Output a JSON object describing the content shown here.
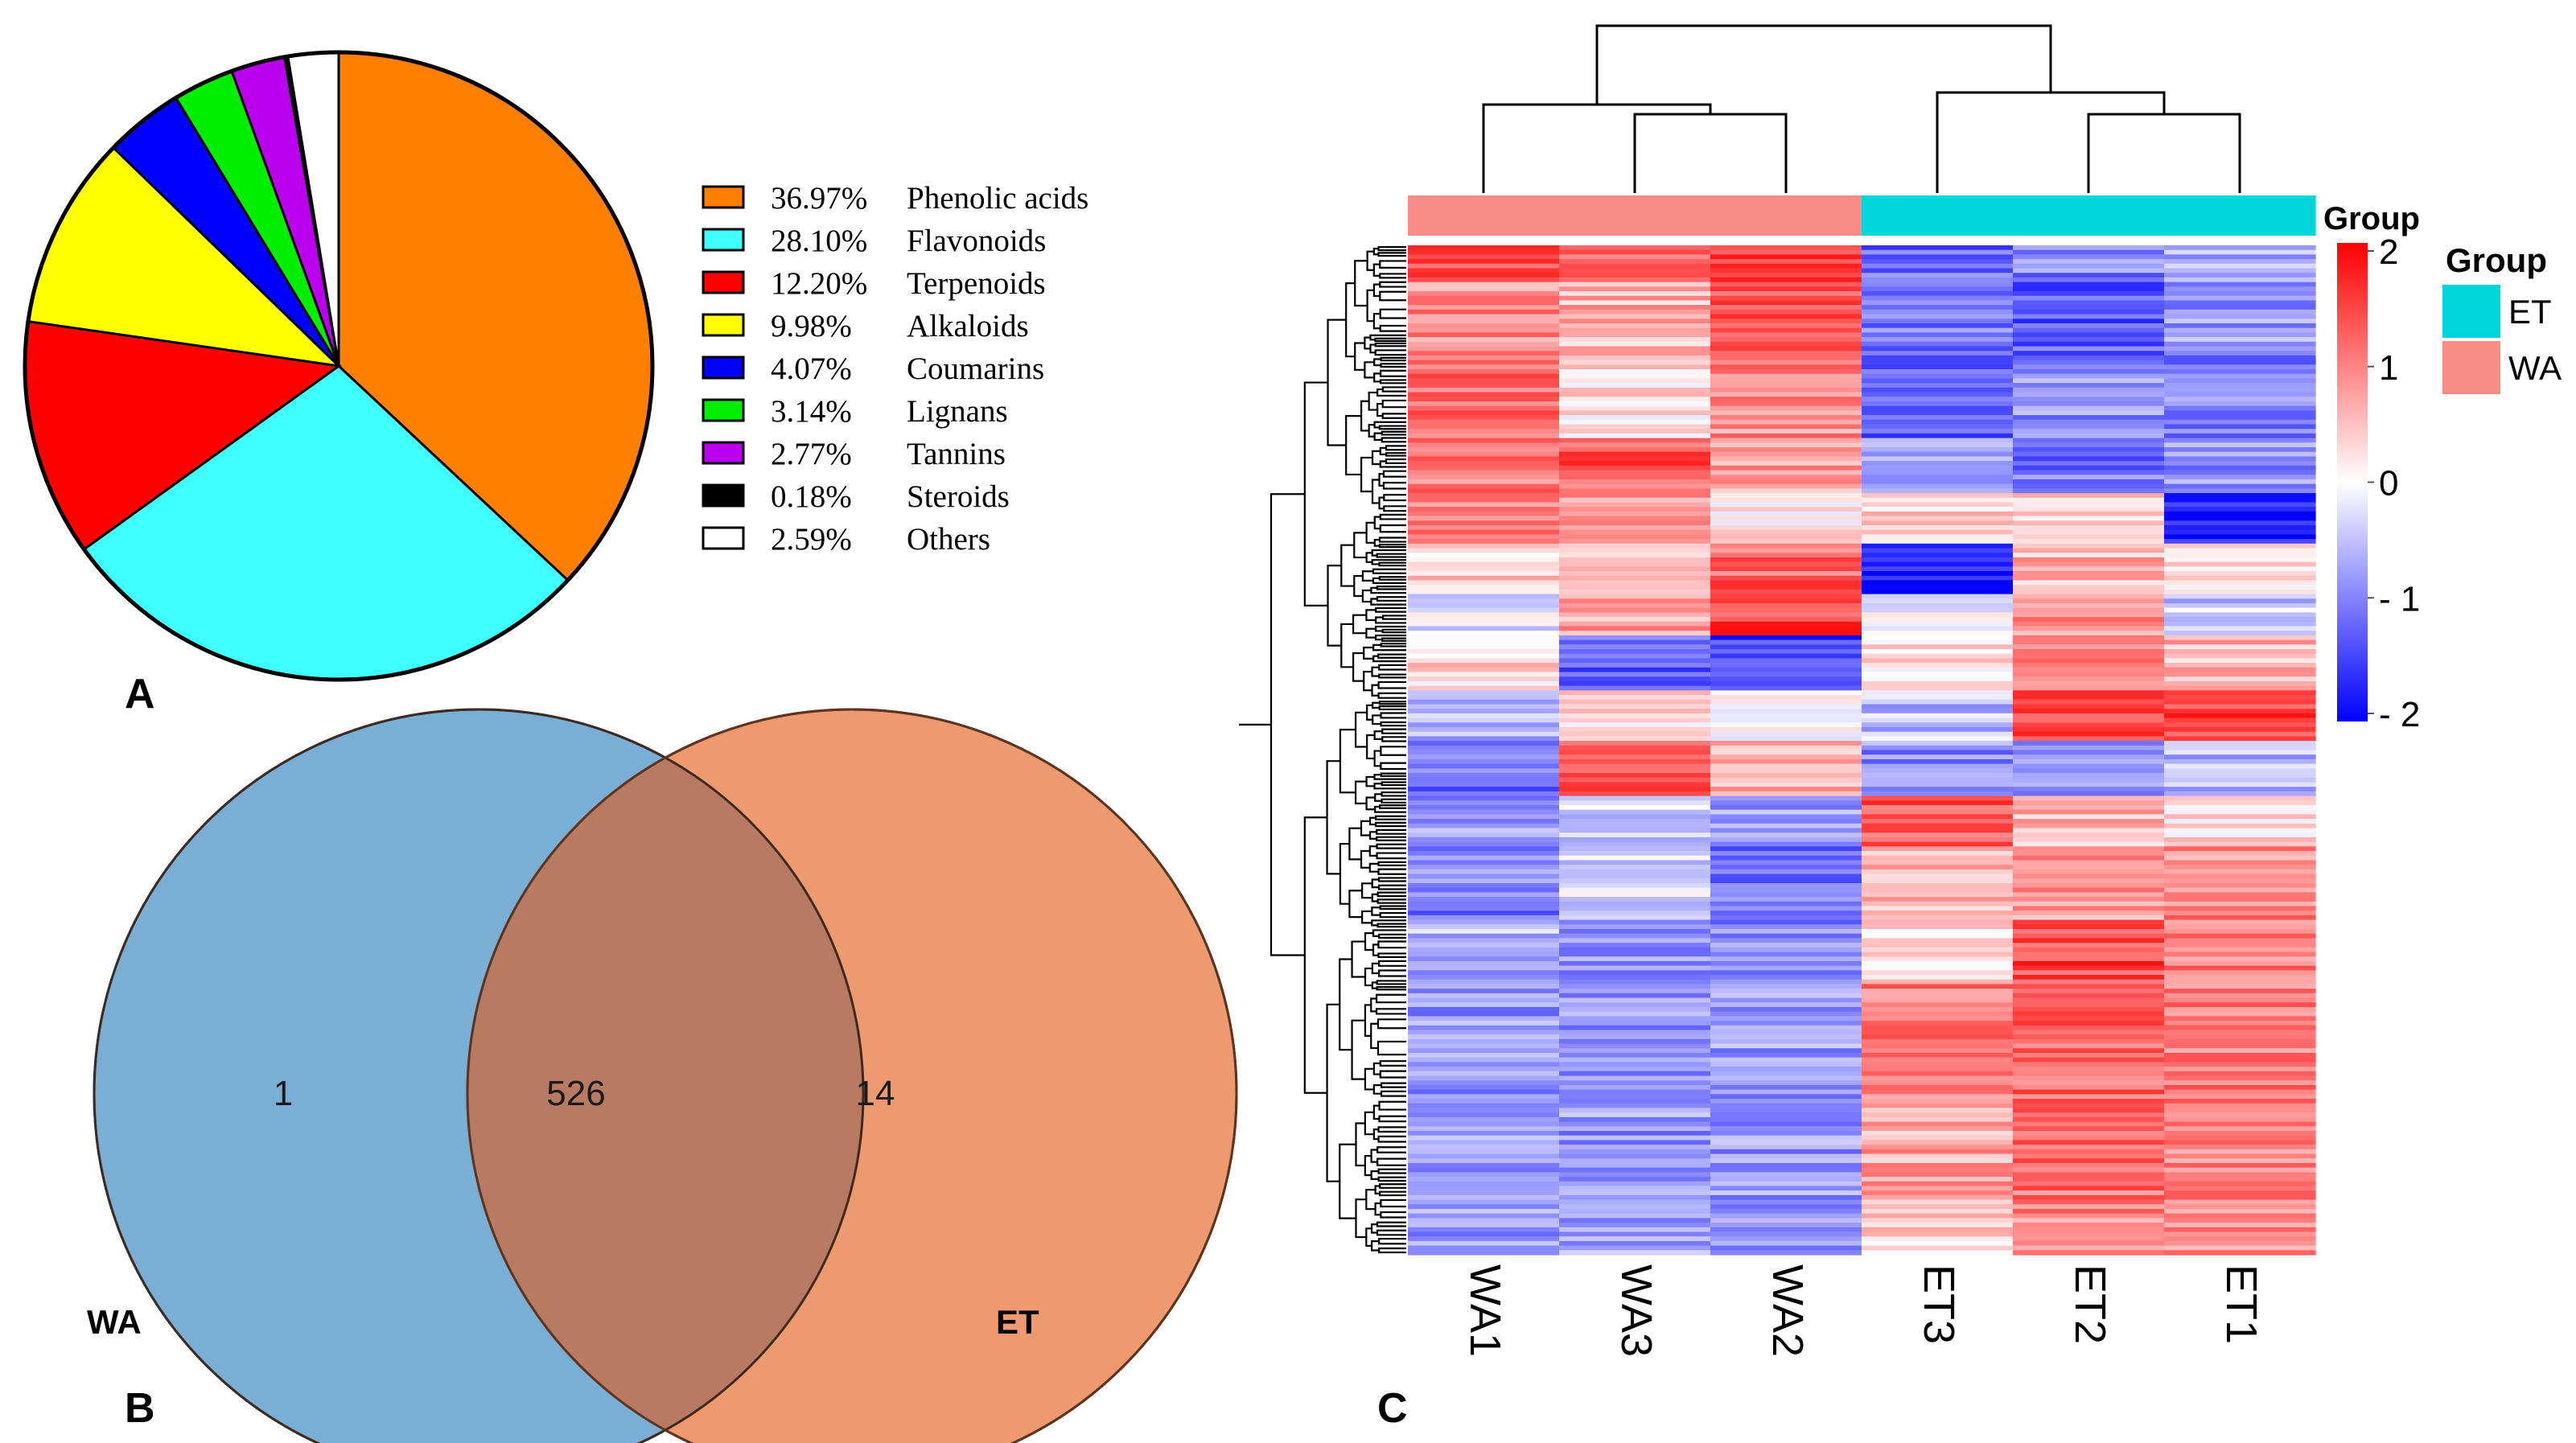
{
  "panels": {
    "a_label": "A",
    "b_label": "B",
    "c_label": "C"
  },
  "chart_data": [
    {
      "type": "pie",
      "panel": "A",
      "start": "top, clockwise",
      "slices": [
        {
          "pct": 36.97,
          "label": "36.97%",
          "name": "Phenolic acids",
          "color": "#FF8000"
        },
        {
          "pct": 28.1,
          "label": "28.10%",
          "name": "Flavonoids",
          "color": "#40FFFF"
        },
        {
          "pct": 12.2,
          "label": "12.20%",
          "name": "Terpenoids",
          "color": "#FF0000"
        },
        {
          "pct": 9.98,
          "label": "9.98%",
          "name": "Alkaloids",
          "color": "#FFFF00"
        },
        {
          "pct": 4.07,
          "label": "4.07%",
          "name": "Coumarins",
          "color": "#0000FF"
        },
        {
          "pct": 3.14,
          "label": "3.14%",
          "name": "Lignans",
          "color": "#00EE00"
        },
        {
          "pct": 2.77,
          "label": "2.77%",
          "name": "Tannins",
          "color": "#BB00EE"
        },
        {
          "pct": 0.18,
          "label": "0.18%",
          "name": "Steroids",
          "color": "#000000"
        },
        {
          "pct": 2.59,
          "label": "2.59%",
          "name": "Others",
          "color": "#FFFFFF"
        }
      ]
    },
    {
      "type": "venn",
      "panel": "B",
      "sets": [
        {
          "name": "WA",
          "label": "WA",
          "color": "#7AAED4"
        },
        {
          "name": "ET",
          "label": "ET",
          "color": "#EE9A70"
        }
      ],
      "intersection_color": "#B87A60",
      "counts": {
        "wa_only": "1",
        "both": "526",
        "et_only": "14"
      }
    },
    {
      "type": "heatmap",
      "panel": "C",
      "columns": [
        "WA1",
        "WA3",
        "WA2",
        "ET3",
        "ET2",
        "ET1"
      ],
      "column_groups": [
        "WA",
        "WA",
        "WA",
        "ET",
        "ET",
        "ET"
      ],
      "group_bar_label": "Group",
      "legend_group_title": "Group",
      "groups": [
        {
          "name": "ET",
          "color": "#00D5DA"
        },
        {
          "name": "WA",
          "color": "#FA8C87"
        }
      ],
      "color_scale": {
        "min": -2,
        "max": 2,
        "low": "#0000FF",
        "mid": "#FFFFFF",
        "high": "#FF0000",
        "ticks": [
          "2",
          "1",
          "0",
          "- 1",
          "- 2"
        ]
      },
      "row_count": 540,
      "row_blocks": [
        {
          "frac": 0.035,
          "values": [
            1.5,
            1.2,
            1.6,
            -1.2,
            -1.0,
            -0.7
          ]
        },
        {
          "frac": 0.07,
          "values": [
            0.9,
            0.6,
            1.2,
            -1.0,
            -1.3,
            -0.8
          ]
        },
        {
          "frac": 0.08,
          "values": [
            1.2,
            0.2,
            0.9,
            -1.2,
            -0.9,
            -1.0
          ]
        },
        {
          "frac": 0.05,
          "values": [
            1.1,
            1.3,
            0.7,
            -0.6,
            -1.1,
            -0.9
          ]
        },
        {
          "frac": 0.05,
          "values": [
            0.9,
            0.9,
            0.1,
            0.3,
            0.3,
            -1.8
          ]
        },
        {
          "frac": 0.05,
          "values": [
            0.4,
            0.6,
            1.2,
            -1.9,
            0.6,
            0.2
          ]
        },
        {
          "frac": 0.04,
          "values": [
            -0.2,
            0.7,
            1.5,
            0.0,
            0.9,
            -0.4
          ]
        },
        {
          "frac": 0.05,
          "values": [
            0.3,
            -1.3,
            -1.5,
            0.3,
            1.1,
            0.6
          ]
        },
        {
          "frac": 0.05,
          "values": [
            -0.6,
            0.2,
            0.1,
            -0.5,
            1.4,
            1.5
          ]
        },
        {
          "frac": 0.05,
          "values": [
            -1.1,
            1.4,
            0.6,
            -0.9,
            -1.0,
            -0.6
          ]
        },
        {
          "frac": 0.05,
          "values": [
            -0.8,
            -0.4,
            -0.7,
            1.3,
            0.6,
            0.2
          ]
        },
        {
          "frac": 0.07,
          "values": [
            -1.0,
            -0.3,
            -1.1,
            0.6,
            0.8,
            0.9
          ]
        },
        {
          "frac": 0.055,
          "values": [
            -0.6,
            -0.8,
            -0.9,
            0.3,
            1.4,
            1.0
          ]
        },
        {
          "frac": 0.12,
          "values": [
            -0.8,
            -0.8,
            -0.8,
            1.0,
            1.2,
            1.0
          ]
        },
        {
          "frac": 0.095,
          "values": [
            -0.8,
            -0.8,
            -0.8,
            0.7,
            1.1,
            1.0
          ]
        },
        {
          "frac": 0.05,
          "values": [
            -0.8,
            -0.8,
            -0.8,
            0.3,
            0.9,
            0.8
          ]
        }
      ]
    }
  ]
}
